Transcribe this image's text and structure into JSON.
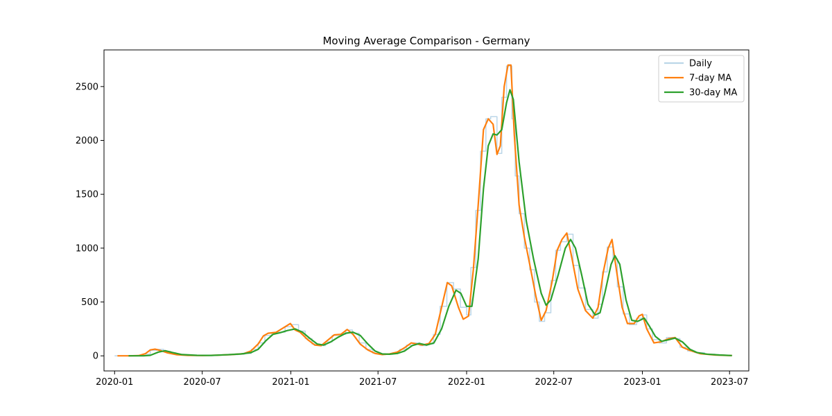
{
  "chart_data": {
    "type": "line",
    "title": "Moving Average Comparison - Germany",
    "xlabel": "",
    "ylabel": "",
    "xlim": [
      "2019-12-10",
      "2023-08-10"
    ],
    "ylim": [
      -140,
      2840
    ],
    "x_ticks": [
      "2020-01",
      "2020-07",
      "2021-01",
      "2021-07",
      "2022-01",
      "2022-07",
      "2023-01",
      "2023-07"
    ],
    "y_ticks": [
      0,
      500,
      1000,
      1500,
      2000,
      2500
    ],
    "legend_position": "top-right",
    "grid": false,
    "series": [
      {
        "name": "Daily",
        "color": "#1f77b4",
        "opacity": 0.3,
        "step": true,
        "points": [
          [
            "2020-01-01",
            0
          ],
          [
            "2020-01-15",
            0
          ],
          [
            "2020-02-01",
            0
          ],
          [
            "2020-02-15",
            3
          ],
          [
            "2020-03-01",
            15
          ],
          [
            "2020-03-15",
            52
          ],
          [
            "2020-03-29",
            60
          ],
          [
            "2020-04-12",
            42
          ],
          [
            "2020-04-26",
            22
          ],
          [
            "2020-05-10",
            10
          ],
          [
            "2020-05-24",
            6
          ],
          [
            "2020-06-07",
            4
          ],
          [
            "2020-06-21",
            3
          ],
          [
            "2020-07-05",
            3
          ],
          [
            "2020-07-19",
            5
          ],
          [
            "2020-08-02",
            6
          ],
          [
            "2020-08-16",
            8
          ],
          [
            "2020-08-30",
            11
          ],
          [
            "2020-09-13",
            15
          ],
          [
            "2020-09-27",
            22
          ],
          [
            "2020-10-11",
            60
          ],
          [
            "2020-10-25",
            120
          ],
          [
            "2020-11-08",
            190
          ],
          [
            "2020-11-22",
            215
          ],
          [
            "2020-12-06",
            220
          ],
          [
            "2020-12-20",
            270
          ],
          [
            "2021-01-03",
            290
          ],
          [
            "2021-01-17",
            230
          ],
          [
            "2021-01-31",
            160
          ],
          [
            "2021-02-14",
            110
          ],
          [
            "2021-02-28",
            95
          ],
          [
            "2021-03-14",
            130
          ],
          [
            "2021-03-28",
            190
          ],
          [
            "2021-04-11",
            200
          ],
          [
            "2021-04-25",
            240
          ],
          [
            "2021-05-09",
            210
          ],
          [
            "2021-05-23",
            120
          ],
          [
            "2021-06-06",
            60
          ],
          [
            "2021-06-20",
            25
          ],
          [
            "2021-07-04",
            12
          ],
          [
            "2021-07-18",
            15
          ],
          [
            "2021-08-01",
            30
          ],
          [
            "2021-08-15",
            60
          ],
          [
            "2021-08-29",
            100
          ],
          [
            "2021-09-12",
            120
          ],
          [
            "2021-09-26",
            95
          ],
          [
            "2021-10-10",
            110
          ],
          [
            "2021-10-24",
            200
          ],
          [
            "2021-11-07",
            460
          ],
          [
            "2021-11-21",
            680
          ],
          [
            "2021-12-05",
            620
          ],
          [
            "2021-12-19",
            450
          ],
          [
            "2022-01-01",
            380
          ],
          [
            "2022-01-10",
            820
          ],
          [
            "2022-01-20",
            1350
          ],
          [
            "2022-01-30",
            1900
          ],
          [
            "2022-02-10",
            2200
          ],
          [
            "2022-02-20",
            2220
          ],
          [
            "2022-03-05",
            1880
          ],
          [
            "2022-03-15",
            2400
          ],
          [
            "2022-03-25",
            2690
          ],
          [
            "2022-04-05",
            2200
          ],
          [
            "2022-04-12",
            1670
          ],
          [
            "2022-04-20",
            1320
          ],
          [
            "2022-05-01",
            1000
          ],
          [
            "2022-05-12",
            800
          ],
          [
            "2022-05-22",
            500
          ],
          [
            "2022-06-01",
            320
          ],
          [
            "2022-06-12",
            400
          ],
          [
            "2022-06-25",
            700
          ],
          [
            "2022-07-05",
            980
          ],
          [
            "2022-07-15",
            1060
          ],
          [
            "2022-07-28",
            1130
          ],
          [
            "2022-08-10",
            840
          ],
          [
            "2022-08-22",
            630
          ],
          [
            "2022-09-05",
            430
          ],
          [
            "2022-09-20",
            350
          ],
          [
            "2022-10-01",
            480
          ],
          [
            "2022-10-10",
            780
          ],
          [
            "2022-10-20",
            1010
          ],
          [
            "2022-11-01",
            900
          ],
          [
            "2022-11-10",
            640
          ],
          [
            "2022-11-22",
            390
          ],
          [
            "2022-12-05",
            290
          ],
          [
            "2022-12-20",
            350
          ],
          [
            "2023-01-01",
            380
          ],
          [
            "2023-01-10",
            250
          ],
          [
            "2023-01-22",
            150
          ],
          [
            "2023-02-05",
            120
          ],
          [
            "2023-02-20",
            170
          ],
          [
            "2023-03-05",
            160
          ],
          [
            "2023-03-20",
            80
          ],
          [
            "2023-04-05",
            45
          ],
          [
            "2023-04-20",
            30
          ],
          [
            "2023-05-10",
            15
          ],
          [
            "2023-06-01",
            8
          ],
          [
            "2023-06-20",
            4
          ],
          [
            "2023-07-06",
            2
          ]
        ]
      },
      {
        "name": "7-day MA",
        "color": "#ff7f0e",
        "points": [
          [
            "2020-01-07",
            0
          ],
          [
            "2020-02-01",
            0
          ],
          [
            "2020-02-20",
            2
          ],
          [
            "2020-03-05",
            20
          ],
          [
            "2020-03-15",
            55
          ],
          [
            "2020-03-25",
            62
          ],
          [
            "2020-04-05",
            50
          ],
          [
            "2020-04-20",
            28
          ],
          [
            "2020-05-10",
            10
          ],
          [
            "2020-06-01",
            5
          ],
          [
            "2020-07-01",
            3
          ],
          [
            "2020-08-01",
            6
          ],
          [
            "2020-09-01",
            12
          ],
          [
            "2020-09-25",
            20
          ],
          [
            "2020-10-10",
            45
          ],
          [
            "2020-10-25",
            110
          ],
          [
            "2020-11-05",
            185
          ],
          [
            "2020-11-15",
            210
          ],
          [
            "2020-12-01",
            218
          ],
          [
            "2020-12-20",
            270
          ],
          [
            "2020-12-31",
            300
          ],
          [
            "2021-01-10",
            240
          ],
          [
            "2021-01-20",
            220
          ],
          [
            "2021-02-05",
            150
          ],
          [
            "2021-02-20",
            100
          ],
          [
            "2021-03-05",
            95
          ],
          [
            "2021-03-20",
            150
          ],
          [
            "2021-04-01",
            195
          ],
          [
            "2021-04-15",
            200
          ],
          [
            "2021-04-28",
            245
          ],
          [
            "2021-05-10",
            200
          ],
          [
            "2021-05-25",
            110
          ],
          [
            "2021-06-10",
            55
          ],
          [
            "2021-06-25",
            22
          ],
          [
            "2021-07-10",
            12
          ],
          [
            "2021-07-25",
            18
          ],
          [
            "2021-08-10",
            35
          ],
          [
            "2021-08-25",
            75
          ],
          [
            "2021-09-08",
            120
          ],
          [
            "2021-09-20",
            110
          ],
          [
            "2021-10-01",
            100
          ],
          [
            "2021-10-15",
            115
          ],
          [
            "2021-10-28",
            200
          ],
          [
            "2021-11-10",
            450
          ],
          [
            "2021-11-22",
            680
          ],
          [
            "2021-12-01",
            650
          ],
          [
            "2021-12-15",
            450
          ],
          [
            "2021-12-25",
            340
          ],
          [
            "2022-01-05",
            370
          ],
          [
            "2022-01-15",
            800
          ],
          [
            "2022-01-25",
            1400
          ],
          [
            "2022-02-05",
            2100
          ],
          [
            "2022-02-15",
            2200
          ],
          [
            "2022-02-25",
            2150
          ],
          [
            "2022-03-05",
            1870
          ],
          [
            "2022-03-12",
            1950
          ],
          [
            "2022-03-20",
            2500
          ],
          [
            "2022-03-28",
            2700
          ],
          [
            "2022-04-03",
            2700
          ],
          [
            "2022-04-10",
            2050
          ],
          [
            "2022-04-20",
            1400
          ],
          [
            "2022-05-01",
            1100
          ],
          [
            "2022-05-12",
            850
          ],
          [
            "2022-05-25",
            550
          ],
          [
            "2022-06-05",
            330
          ],
          [
            "2022-06-15",
            420
          ],
          [
            "2022-06-28",
            700
          ],
          [
            "2022-07-08",
            980
          ],
          [
            "2022-07-18",
            1080
          ],
          [
            "2022-07-28",
            1140
          ],
          [
            "2022-08-08",
            900
          ],
          [
            "2022-08-20",
            620
          ],
          [
            "2022-09-05",
            420
          ],
          [
            "2022-09-20",
            350
          ],
          [
            "2022-10-01",
            450
          ],
          [
            "2022-10-12",
            780
          ],
          [
            "2022-10-22",
            1000
          ],
          [
            "2022-10-30",
            1080
          ],
          [
            "2022-11-08",
            800
          ],
          [
            "2022-11-20",
            450
          ],
          [
            "2022-12-01",
            300
          ],
          [
            "2022-12-15",
            300
          ],
          [
            "2022-12-25",
            370
          ],
          [
            "2023-01-01",
            385
          ],
          [
            "2023-01-10",
            250
          ],
          [
            "2023-01-25",
            120
          ],
          [
            "2023-02-08",
            130
          ],
          [
            "2023-02-25",
            160
          ],
          [
            "2023-03-10",
            170
          ],
          [
            "2023-03-25",
            80
          ],
          [
            "2023-04-10",
            50
          ],
          [
            "2023-05-01",
            20
          ],
          [
            "2023-06-01",
            8
          ],
          [
            "2023-07-06",
            2
          ]
        ]
      },
      {
        "name": "30-day MA",
        "color": "#2ca02c",
        "points": [
          [
            "2020-01-30",
            0
          ],
          [
            "2020-03-01",
            0
          ],
          [
            "2020-03-15",
            5
          ],
          [
            "2020-04-01",
            35
          ],
          [
            "2020-04-15",
            48
          ],
          [
            "2020-05-01",
            30
          ],
          [
            "2020-05-20",
            12
          ],
          [
            "2020-06-20",
            5
          ],
          [
            "2020-07-20",
            4
          ],
          [
            "2020-08-20",
            10
          ],
          [
            "2020-09-20",
            18
          ],
          [
            "2020-10-10",
            30
          ],
          [
            "2020-10-25",
            60
          ],
          [
            "2020-11-10",
            140
          ],
          [
            "2020-11-25",
            200
          ],
          [
            "2020-12-10",
            215
          ],
          [
            "2020-12-25",
            235
          ],
          [
            "2021-01-10",
            250
          ],
          [
            "2021-01-25",
            220
          ],
          [
            "2021-02-10",
            160
          ],
          [
            "2021-02-25",
            110
          ],
          [
            "2021-03-10",
            100
          ],
          [
            "2021-03-25",
            130
          ],
          [
            "2021-04-10",
            175
          ],
          [
            "2021-04-25",
            210
          ],
          [
            "2021-05-10",
            220
          ],
          [
            "2021-05-25",
            190
          ],
          [
            "2021-06-10",
            110
          ],
          [
            "2021-06-25",
            45
          ],
          [
            "2021-07-10",
            18
          ],
          [
            "2021-07-25",
            15
          ],
          [
            "2021-08-10",
            22
          ],
          [
            "2021-08-25",
            45
          ],
          [
            "2021-09-10",
            95
          ],
          [
            "2021-09-25",
            115
          ],
          [
            "2021-10-10",
            100
          ],
          [
            "2021-10-25",
            120
          ],
          [
            "2021-11-10",
            250
          ],
          [
            "2021-11-25",
            460
          ],
          [
            "2021-12-10",
            610
          ],
          [
            "2021-12-20",
            580
          ],
          [
            "2022-01-01",
            460
          ],
          [
            "2022-01-12",
            460
          ],
          [
            "2022-01-25",
            900
          ],
          [
            "2022-02-05",
            1550
          ],
          [
            "2022-02-15",
            1950
          ],
          [
            "2022-02-25",
            2060
          ],
          [
            "2022-03-05",
            2050
          ],
          [
            "2022-03-15",
            2100
          ],
          [
            "2022-03-25",
            2350
          ],
          [
            "2022-04-01",
            2470
          ],
          [
            "2022-04-08",
            2380
          ],
          [
            "2022-04-20",
            1800
          ],
          [
            "2022-05-05",
            1250
          ],
          [
            "2022-05-20",
            900
          ],
          [
            "2022-06-05",
            580
          ],
          [
            "2022-06-15",
            470
          ],
          [
            "2022-06-25",
            520
          ],
          [
            "2022-07-10",
            750
          ],
          [
            "2022-07-25",
            1000
          ],
          [
            "2022-08-05",
            1080
          ],
          [
            "2022-08-15",
            1000
          ],
          [
            "2022-08-28",
            750
          ],
          [
            "2022-09-10",
            480
          ],
          [
            "2022-09-25",
            380
          ],
          [
            "2022-10-05",
            400
          ],
          [
            "2022-10-15",
            580
          ],
          [
            "2022-10-28",
            850
          ],
          [
            "2022-11-05",
            930
          ],
          [
            "2022-11-15",
            850
          ],
          [
            "2022-11-28",
            520
          ],
          [
            "2022-12-10",
            330
          ],
          [
            "2022-12-22",
            320
          ],
          [
            "2023-01-05",
            350
          ],
          [
            "2023-01-15",
            280
          ],
          [
            "2023-01-28",
            180
          ],
          [
            "2023-02-10",
            135
          ],
          [
            "2023-02-25",
            150
          ],
          [
            "2023-03-10",
            165
          ],
          [
            "2023-03-25",
            130
          ],
          [
            "2023-04-10",
            60
          ],
          [
            "2023-04-25",
            30
          ],
          [
            "2023-05-15",
            16
          ],
          [
            "2023-06-10",
            8
          ],
          [
            "2023-07-06",
            3
          ]
        ]
      }
    ]
  }
}
